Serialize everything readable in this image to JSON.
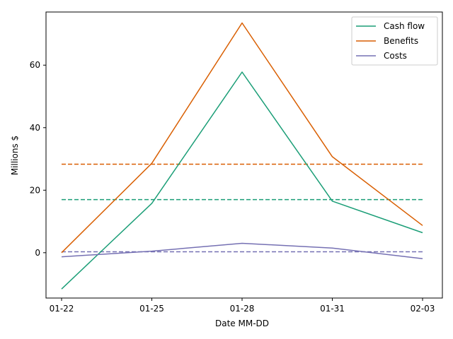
{
  "chart_data": {
    "type": "line",
    "title": "",
    "xlabel": "Date MM-DD",
    "ylabel": "Millions $",
    "x": [
      "01-22",
      "01-25",
      "01-28",
      "01-31",
      "02-03"
    ],
    "xticks": [
      "01-22",
      "01-25",
      "01-28",
      "01-31",
      "02-03"
    ],
    "yticks": [
      0,
      20,
      40,
      60
    ],
    "ylim": [
      -14.5,
      77.0
    ],
    "grid": false,
    "legend_position": "top-right",
    "series": [
      {
        "name": "Cash flow",
        "color": "#1b9e77",
        "values": [
          -11.6,
          15.8,
          57.8,
          16.5,
          6.4
        ],
        "mean": 17.0
      },
      {
        "name": "Benefits",
        "color": "#d95f02",
        "values": [
          0.0,
          28.6,
          73.5,
          30.7,
          8.7
        ],
        "mean": 28.3
      },
      {
        "name": "Costs",
        "color": "#7570b3",
        "values": [
          -1.3,
          0.5,
          3.0,
          1.5,
          -1.9
        ],
        "mean": 0.3
      }
    ]
  }
}
